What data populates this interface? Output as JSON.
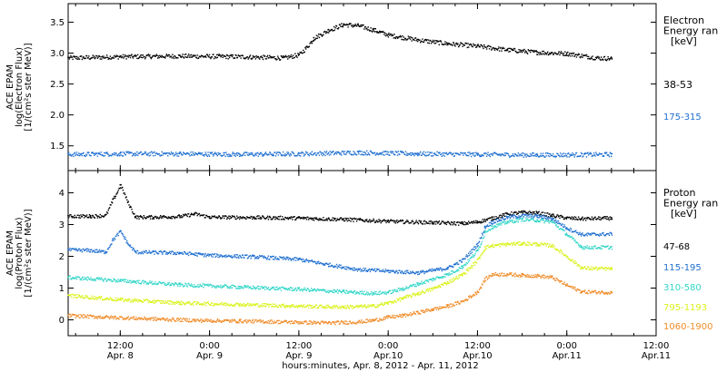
{
  "figure": {
    "xlabel": "hours:minutes, Apr.  8, 2012 - Apr. 11, 2012",
    "x_ticks": [
      {
        "hour": 12,
        "time": "12:00",
        "date": "Apr. 8"
      },
      {
        "hour": 24,
        "time": "0:00",
        "date": "Apr. 9"
      },
      {
        "hour": 36,
        "time": "12:00",
        "date": "Apr. 9"
      },
      {
        "hour": 48,
        "time": "0:00",
        "date": "Apr.10"
      },
      {
        "hour": 60,
        "time": "12:00",
        "date": "Apr.10"
      },
      {
        "hour": 72,
        "time": "0:00",
        "date": "Apr.11"
      },
      {
        "hour": 84,
        "time": "12:00",
        "date": "Apr.11"
      }
    ],
    "xlim": [
      5,
      84
    ]
  },
  "chart_data": [
    {
      "type": "scatter",
      "panel": "electron",
      "ylabel_lines": [
        "ACE EPAM",
        "log(Electron Flux)",
        "[1/(cm²s ster MeV)]"
      ],
      "legend_lines": [
        "Electron",
        "Energy ran",
        "[keV]"
      ],
      "ylim": [
        1.1,
        3.8
      ],
      "yticks": [
        1.5,
        2.0,
        2.5,
        3.0,
        3.5
      ],
      "ytick_labels": [
        "1.5",
        "2.0",
        "2.5",
        "3.0",
        "3.5"
      ],
      "series": [
        {
          "name": "38-53",
          "color": "#000000",
          "x": [
            5,
            12,
            20,
            28,
            34,
            36,
            37,
            38,
            40,
            42,
            44,
            46,
            48,
            52,
            56,
            60,
            64,
            68,
            72,
            76,
            78
          ],
          "y": [
            2.93,
            2.95,
            2.96,
            2.95,
            2.93,
            2.98,
            3.1,
            3.25,
            3.38,
            3.47,
            3.45,
            3.38,
            3.3,
            3.22,
            3.16,
            3.12,
            3.06,
            3.02,
            3.0,
            2.93,
            2.92
          ]
        },
        {
          "name": "175-315",
          "color": "#1E6FD0",
          "x": [
            5,
            12,
            20,
            28,
            36,
            44,
            52,
            60,
            68,
            78
          ],
          "y": [
            1.37,
            1.38,
            1.38,
            1.37,
            1.38,
            1.4,
            1.38,
            1.37,
            1.36,
            1.37
          ]
        }
      ]
    },
    {
      "type": "scatter",
      "panel": "proton",
      "ylabel_lines": [
        "ACE EPAM",
        "log(Proton Flux)",
        "[1/(cm²s ster MeV)]"
      ],
      "legend_lines": [
        "Proton",
        "Energy ran",
        "[keV]"
      ],
      "ylim": [
        -0.5,
        4.7
      ],
      "yticks": [
        0,
        1,
        2,
        3,
        4
      ],
      "ytick_labels": [
        "0",
        "1",
        "2",
        "3",
        "4"
      ],
      "series": [
        {
          "name": "47-68",
          "color": "#000000",
          "x": [
            5,
            8,
            10,
            11,
            12,
            13,
            14,
            16,
            20,
            22,
            24,
            30,
            36,
            42,
            48,
            54,
            58,
            60,
            62,
            64,
            66,
            68,
            70,
            72,
            74,
            78
          ],
          "y": [
            3.28,
            3.28,
            3.3,
            3.8,
            4.25,
            3.7,
            3.25,
            3.25,
            3.27,
            3.35,
            3.25,
            3.24,
            3.22,
            3.18,
            3.12,
            3.08,
            3.05,
            3.1,
            3.22,
            3.35,
            3.4,
            3.38,
            3.3,
            3.22,
            3.2,
            3.22
          ]
        },
        {
          "name": "115-195",
          "color": "#1E6FD0",
          "x": [
            5,
            8,
            10,
            11,
            12,
            13,
            14,
            20,
            24,
            30,
            36,
            40,
            44,
            48,
            52,
            56,
            58,
            60,
            61,
            62,
            64,
            66,
            68,
            70,
            72,
            74,
            78
          ],
          "y": [
            2.22,
            2.2,
            2.15,
            2.55,
            2.8,
            2.4,
            2.15,
            2.12,
            2.05,
            2.0,
            1.92,
            1.75,
            1.6,
            1.55,
            1.5,
            1.65,
            1.9,
            2.4,
            2.95,
            3.1,
            3.25,
            3.3,
            3.28,
            3.2,
            2.9,
            2.7,
            2.72
          ]
        },
        {
          "name": "310-580",
          "color": "#33D6C8",
          "x": [
            5,
            12,
            20,
            28,
            36,
            42,
            46,
            48,
            50,
            52,
            54,
            56,
            58,
            60,
            61,
            62,
            64,
            66,
            68,
            70,
            72,
            74,
            78
          ],
          "y": [
            1.35,
            1.25,
            1.12,
            1.05,
            0.98,
            0.9,
            0.85,
            0.88,
            1.0,
            1.15,
            1.3,
            1.45,
            1.7,
            2.2,
            2.8,
            2.95,
            3.1,
            3.18,
            3.15,
            3.1,
            2.7,
            2.3,
            2.3
          ]
        },
        {
          "name": "795-1193",
          "color": "#D9F21A",
          "x": [
            5,
            12,
            20,
            28,
            36,
            42,
            46,
            48,
            50,
            52,
            54,
            56,
            58,
            60,
            61,
            62,
            64,
            66,
            68,
            70,
            72,
            74,
            78
          ],
          "y": [
            0.78,
            0.65,
            0.55,
            0.5,
            0.45,
            0.42,
            0.45,
            0.55,
            0.7,
            0.85,
            1.0,
            1.2,
            1.45,
            1.9,
            2.3,
            2.35,
            2.4,
            2.42,
            2.4,
            2.35,
            2.0,
            1.65,
            1.62
          ]
        },
        {
          "name": "1060-1900",
          "color": "#F08C2A",
          "x": [
            5,
            10,
            16,
            22,
            28,
            34,
            40,
            44,
            46,
            48,
            50,
            52,
            54,
            56,
            58,
            60,
            61,
            62,
            64,
            66,
            68,
            70,
            72,
            74,
            78
          ],
          "y": [
            0.15,
            0.1,
            0.05,
            0.0,
            -0.02,
            -0.05,
            -0.08,
            -0.05,
            0.0,
            0.1,
            0.15,
            0.25,
            0.35,
            0.45,
            0.6,
            0.9,
            1.3,
            1.45,
            1.45,
            1.42,
            1.4,
            1.35,
            1.1,
            0.9,
            0.88
          ]
        }
      ]
    }
  ]
}
